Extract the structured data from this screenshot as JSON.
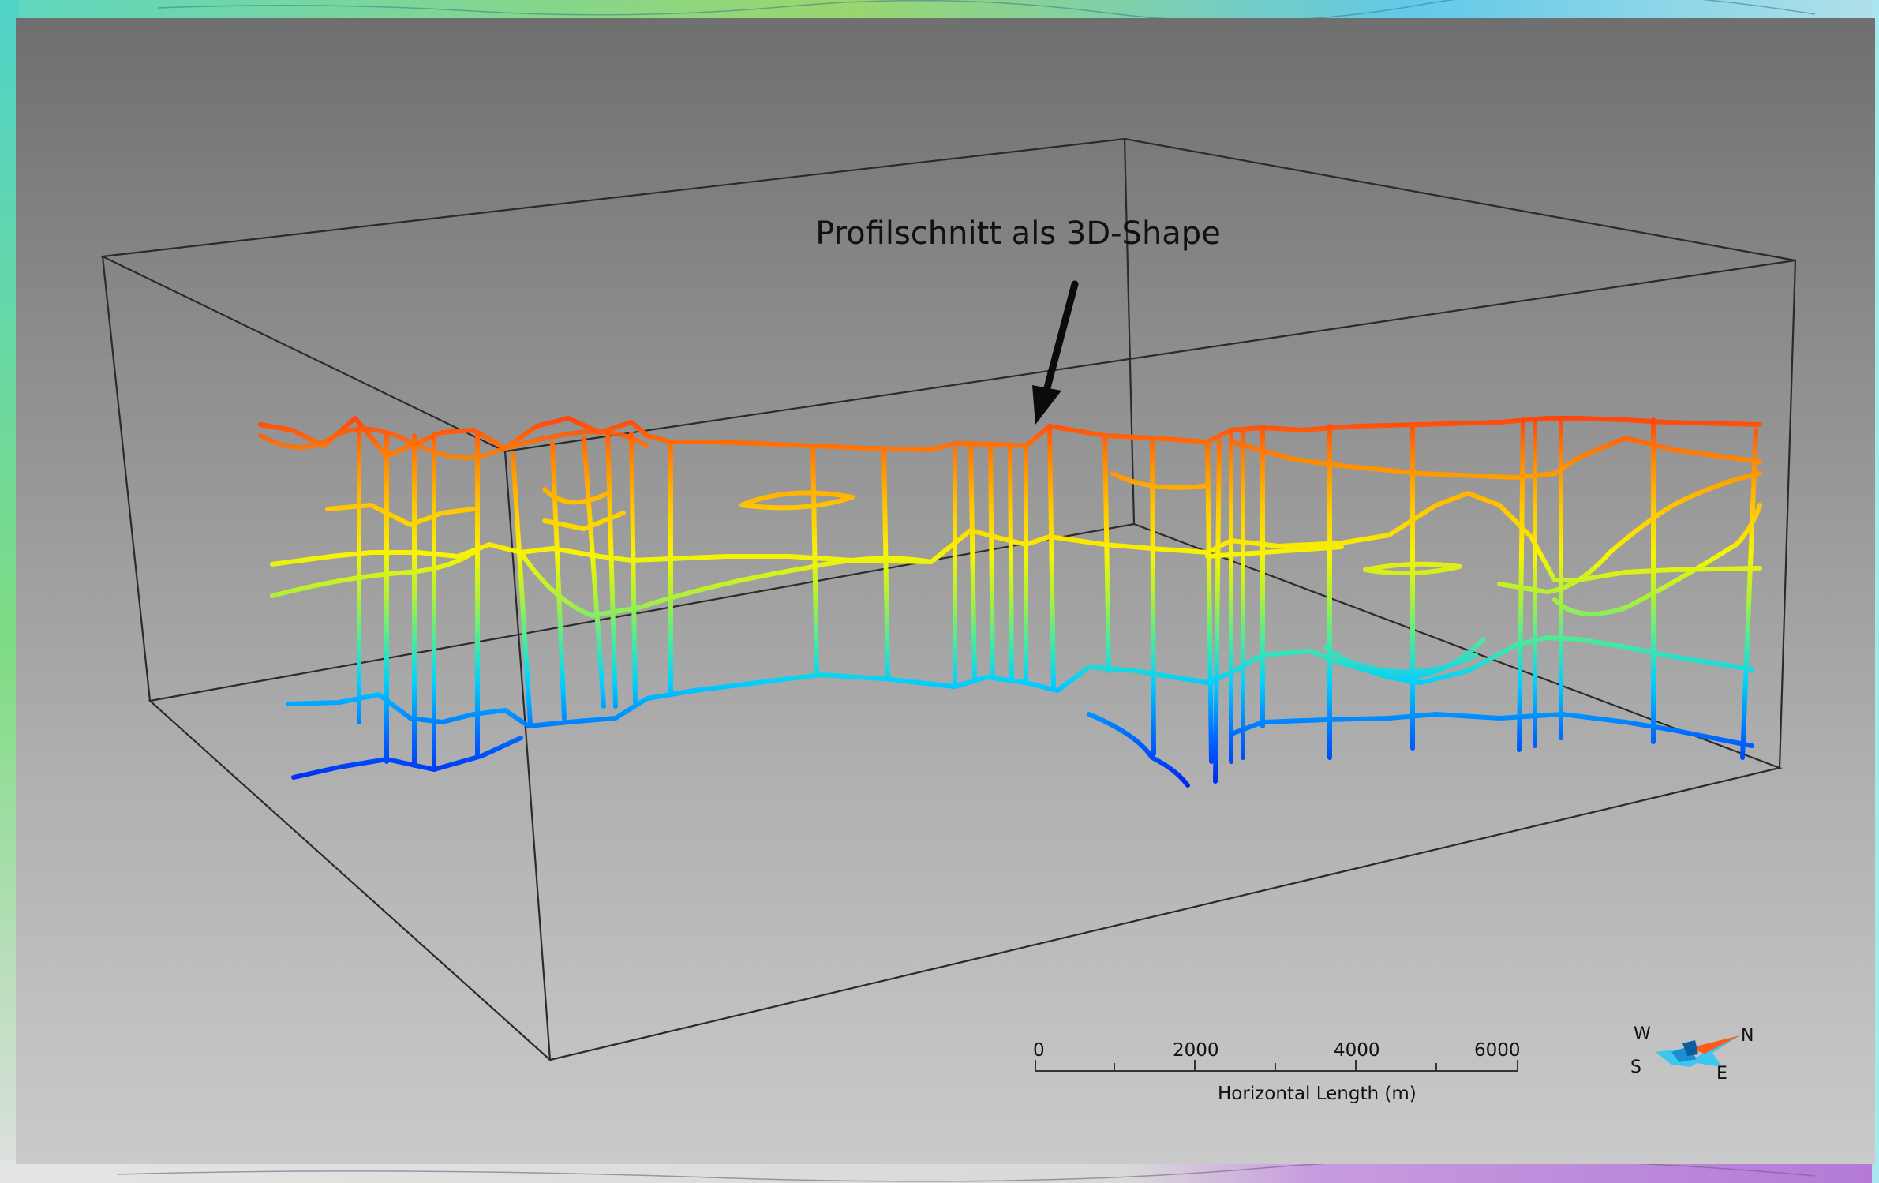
{
  "callout": {
    "text": "Profilschnitt als 3D-Shape"
  },
  "scale_bar": {
    "ticks": [
      "0",
      "2000",
      "4000",
      "6000"
    ],
    "title": "Horizontal Length (m)"
  },
  "compass": {
    "north": "N",
    "south": "S",
    "east": "E",
    "west": "W"
  },
  "colors": {
    "background_top": "#6f6f6f",
    "background_bottom": "#cacaca",
    "high_elevation": "#ff3a10",
    "mid_elevation": "#f7f400",
    "low_elevation": "#0030ff",
    "compass_north": "#ff5a1a",
    "compass_body": "#3cc6f0"
  },
  "icons": {
    "arrow": "arrow-down-icon",
    "compass": "north-arrow-icon"
  }
}
